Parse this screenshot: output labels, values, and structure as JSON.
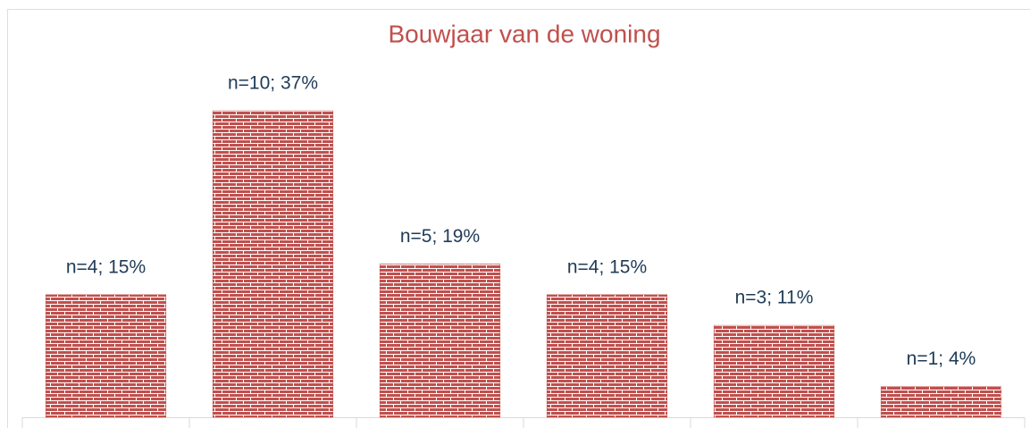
{
  "chart_data": {
    "type": "bar",
    "title": "Bouwjaar van de woning",
    "categories": [
      null,
      null,
      null,
      null,
      null,
      null
    ],
    "values": [
      4,
      10,
      5,
      4,
      3,
      1
    ],
    "value_labels": [
      "n=4; 15%",
      "n=10; 37%",
      "n=5; 19%",
      "n=4; 15%",
      "n=3; 11%",
      "n=1; 4%"
    ],
    "color": "#c0504d"
  }
}
